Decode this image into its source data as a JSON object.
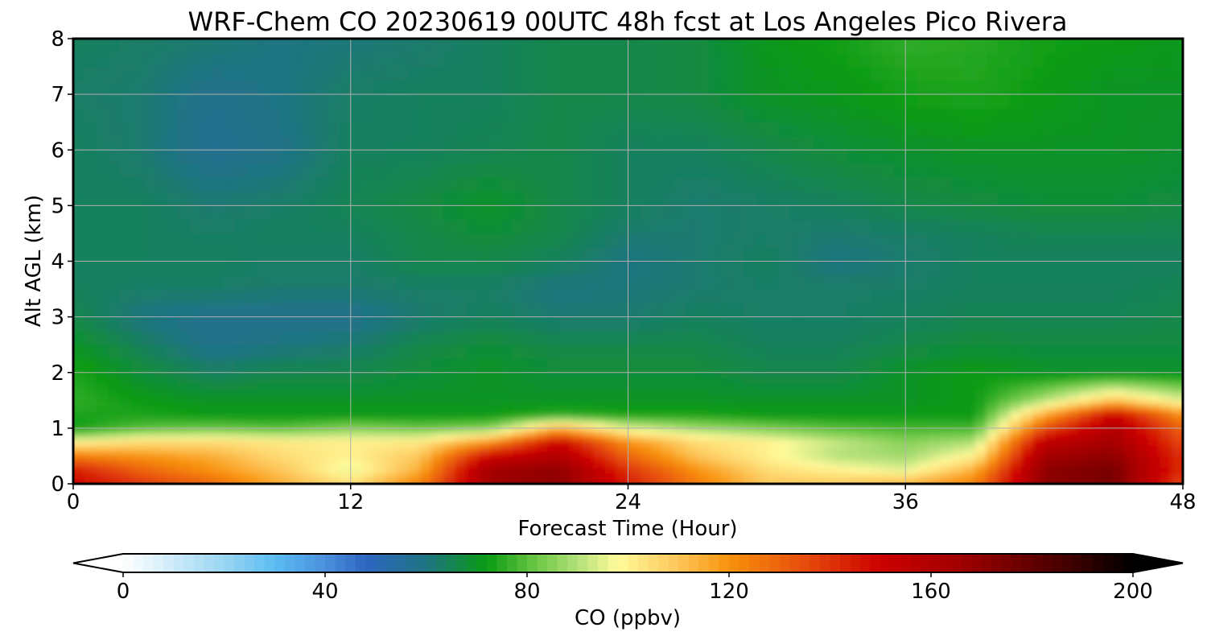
{
  "chart_data": {
    "type": "heatmap",
    "title": "WRF-Chem CO  20230619 00UTC 48h fcst at Los Angeles Pico Rivera",
    "xlabel": "Forecast Time (Hour)",
    "ylabel": "Alt AGL (km)",
    "xlim": [
      0,
      48
    ],
    "ylim": [
      0,
      8
    ],
    "x_ticks": [
      0,
      12,
      24,
      36,
      48
    ],
    "y_ticks": [
      0,
      1,
      2,
      3,
      4,
      5,
      6,
      7,
      8
    ],
    "grid": true,
    "x": [
      0,
      3,
      6,
      9,
      12,
      15,
      18,
      21,
      24,
      27,
      30,
      33,
      36,
      39,
      42,
      45,
      48
    ],
    "y": [
      0,
      0.25,
      0.5,
      0.75,
      1,
      1.25,
      1.5,
      2,
      2.5,
      3,
      3.5,
      4,
      4.5,
      5,
      6,
      7,
      8
    ],
    "z": [
      [
        150,
        140,
        130,
        115,
        105,
        125,
        165,
        170,
        145,
        125,
        110,
        110,
        115,
        125,
        170,
        175,
        135
      ],
      [
        145,
        130,
        120,
        110,
        95,
        115,
        165,
        170,
        140,
        120,
        105,
        100,
        95,
        115,
        170,
        175,
        140
      ],
      [
        125,
        120,
        115,
        105,
        100,
        110,
        150,
        160,
        130,
        110,
        100,
        90,
        88,
        100,
        165,
        170,
        140
      ],
      [
        100,
        105,
        105,
        102,
        100,
        102,
        120,
        150,
        120,
        105,
        100,
        92,
        85,
        90,
        155,
        165,
        135
      ],
      [
        72,
        80,
        82,
        80,
        85,
        82,
        85,
        115,
        95,
        88,
        84,
        80,
        78,
        78,
        135,
        160,
        130
      ],
      [
        74,
        74,
        72,
        72,
        72,
        72,
        72,
        76,
        74,
        74,
        72,
        72,
        72,
        72,
        115,
        150,
        120
      ],
      [
        76,
        72,
        70,
        70,
        70,
        70,
        70,
        70,
        70,
        70,
        70,
        70,
        70,
        72,
        90,
        110,
        95
      ],
      [
        74,
        68,
        64,
        66,
        66,
        68,
        70,
        68,
        68,
        68,
        66,
        66,
        70,
        72,
        70,
        70,
        70
      ],
      [
        70,
        64,
        58,
        60,
        62,
        66,
        68,
        66,
        66,
        66,
        64,
        64,
        66,
        68,
        67,
        67,
        67
      ],
      [
        66,
        60,
        58,
        58,
        58,
        62,
        64,
        62,
        62,
        64,
        63,
        63,
        64,
        65,
        65,
        65,
        66
      ],
      [
        64,
        63,
        63,
        62,
        62,
        63,
        63,
        60,
        61,
        62,
        63,
        63,
        63,
        64,
        64,
        64,
        65
      ],
      [
        64,
        64,
        64,
        63,
        63,
        66,
        66,
        64,
        60,
        62,
        64,
        60,
        62,
        64,
        64,
        64,
        64
      ],
      [
        64,
        64,
        63,
        64,
        64,
        66,
        68,
        66,
        62,
        62,
        63,
        62,
        63,
        64,
        65,
        65,
        65
      ],
      [
        64,
        64,
        62,
        63,
        65,
        67,
        70,
        66,
        64,
        62,
        63,
        64,
        66,
        67,
        68,
        68,
        67
      ],
      [
        64,
        62,
        57,
        59,
        64,
        64,
        65,
        66,
        64,
        64,
        66,
        68,
        69,
        70,
        70,
        70,
        69
      ],
      [
        63,
        62,
        58,
        60,
        63,
        64,
        64,
        66,
        66,
        67,
        70,
        71,
        73,
        74,
        72,
        70,
        70
      ],
      [
        64,
        63,
        62,
        60,
        61,
        62,
        64,
        66,
        66,
        67,
        71,
        73,
        76,
        75,
        73,
        72,
        71
      ]
    ],
    "colorbar": {
      "label": "CO  (ppbv)",
      "ticks": [
        0,
        40,
        80,
        120,
        160,
        200
      ],
      "min": 0,
      "max": 200,
      "extend": "both",
      "colors": [
        [
          0,
          "#ffffff"
        ],
        [
          20,
          "#9ad6f2"
        ],
        [
          30,
          "#5bbcf2"
        ],
        [
          40,
          "#4a90dc"
        ],
        [
          48,
          "#2e66c2"
        ],
        [
          60,
          "#1f7482"
        ],
        [
          72,
          "#0a9a14"
        ],
        [
          82,
          "#6ec845"
        ],
        [
          90,
          "#b3e07a"
        ],
        [
          98,
          "#fffa9a"
        ],
        [
          110,
          "#fdc65a"
        ],
        [
          120,
          "#f8920c"
        ],
        [
          135,
          "#e64d0c"
        ],
        [
          150,
          "#cc0000"
        ],
        [
          165,
          "#a30000"
        ],
        [
          185,
          "#4c0000"
        ],
        [
          200,
          "#000000"
        ]
      ]
    }
  }
}
